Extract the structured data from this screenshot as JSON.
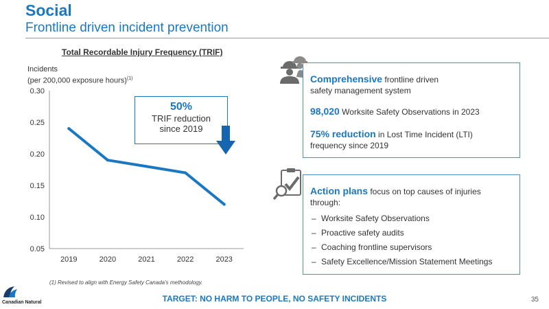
{
  "header": {
    "title": "Social",
    "subtitle": "Frontline driven incident prevention"
  },
  "chart_data": {
    "type": "line",
    "title": "Total Recordable Injury Frequency (TRIF)",
    "ylabel_line1": "Incidents",
    "ylabel_line2": "(per 200,000 exposure hours)",
    "ylabel_note": "(1)",
    "categories": [
      "2019",
      "2020",
      "2021",
      "2022",
      "2023"
    ],
    "series": [
      {
        "values": [
          0.24,
          0.19,
          0.18,
          0.17,
          0.12
        ]
      }
    ],
    "yticks": [
      "0.30",
      "0.25",
      "0.20",
      "0.15",
      "0.10",
      "0.05"
    ],
    "ylim": [
      0.05,
      0.3
    ],
    "grid": false,
    "color": "#1a78c2"
  },
  "callout": {
    "value": "50%",
    "line1": "TRIF reduction",
    "line2": "since 2019"
  },
  "panel1": {
    "item1_bold": "Comprehensive",
    "item1_rest": " frontline driven",
    "item1_line2": "safety management system",
    "item2_bold": "98,020",
    "item2_rest": " Worksite Safety Observations in 2023",
    "item3_bold": "75% reduction",
    "item3_rest": " in Lost Time Incident (LTI)",
    "item3_line2": "frequency since 2019"
  },
  "panel2": {
    "intro_bold": "Action plans",
    "intro_rest": " focus on top causes of injuries",
    "intro_line2": "through:",
    "dash": "–",
    "bullets": [
      "Worksite Safety Observations",
      "Proactive safety audits",
      "Coaching frontline supervisors",
      "Safety Excellence/Mission Statement Meetings"
    ]
  },
  "footer": {
    "footnote": "(1) Revised to align with Energy Safety Canada's methodology.",
    "target": "TARGET: NO HARM TO PEOPLE, NO SAFETY INCIDENTS",
    "page_number": "35",
    "logo_text": "Canadian Natural"
  },
  "colors": {
    "accent": "#1a78c2",
    "panel_border": "#4a8fc8",
    "arrow": "#1565b0",
    "icon_gray": "#6b6b6b"
  }
}
